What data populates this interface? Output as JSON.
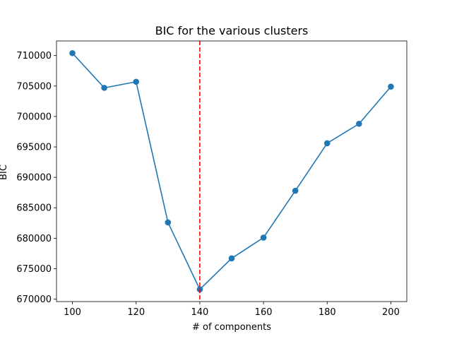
{
  "chart_data": {
    "type": "line",
    "title": "BIC for the various clusters",
    "xlabel": "# of components",
    "ylabel": "BIC",
    "x": [
      100,
      110,
      120,
      130,
      140,
      150,
      160,
      170,
      180,
      190,
      200
    ],
    "series": [
      {
        "values": [
          710400,
          704700,
          705700,
          682600,
          671600,
          676700,
          680100,
          687800,
          695600,
          698800,
          704900
        ],
        "color": "#1f77b4",
        "marker": "circle"
      }
    ],
    "xlim": [
      95,
      205
    ],
    "ylim": [
      669600,
      712400
    ],
    "xticks": [
      100,
      120,
      140,
      160,
      180,
      200
    ],
    "yticks": [
      670000,
      675000,
      680000,
      685000,
      690000,
      695000,
      700000,
      705000,
      710000
    ],
    "vline": {
      "x": 140,
      "color": "#ff0000",
      "style": "dashed"
    },
    "grid": false,
    "legend": "none"
  }
}
